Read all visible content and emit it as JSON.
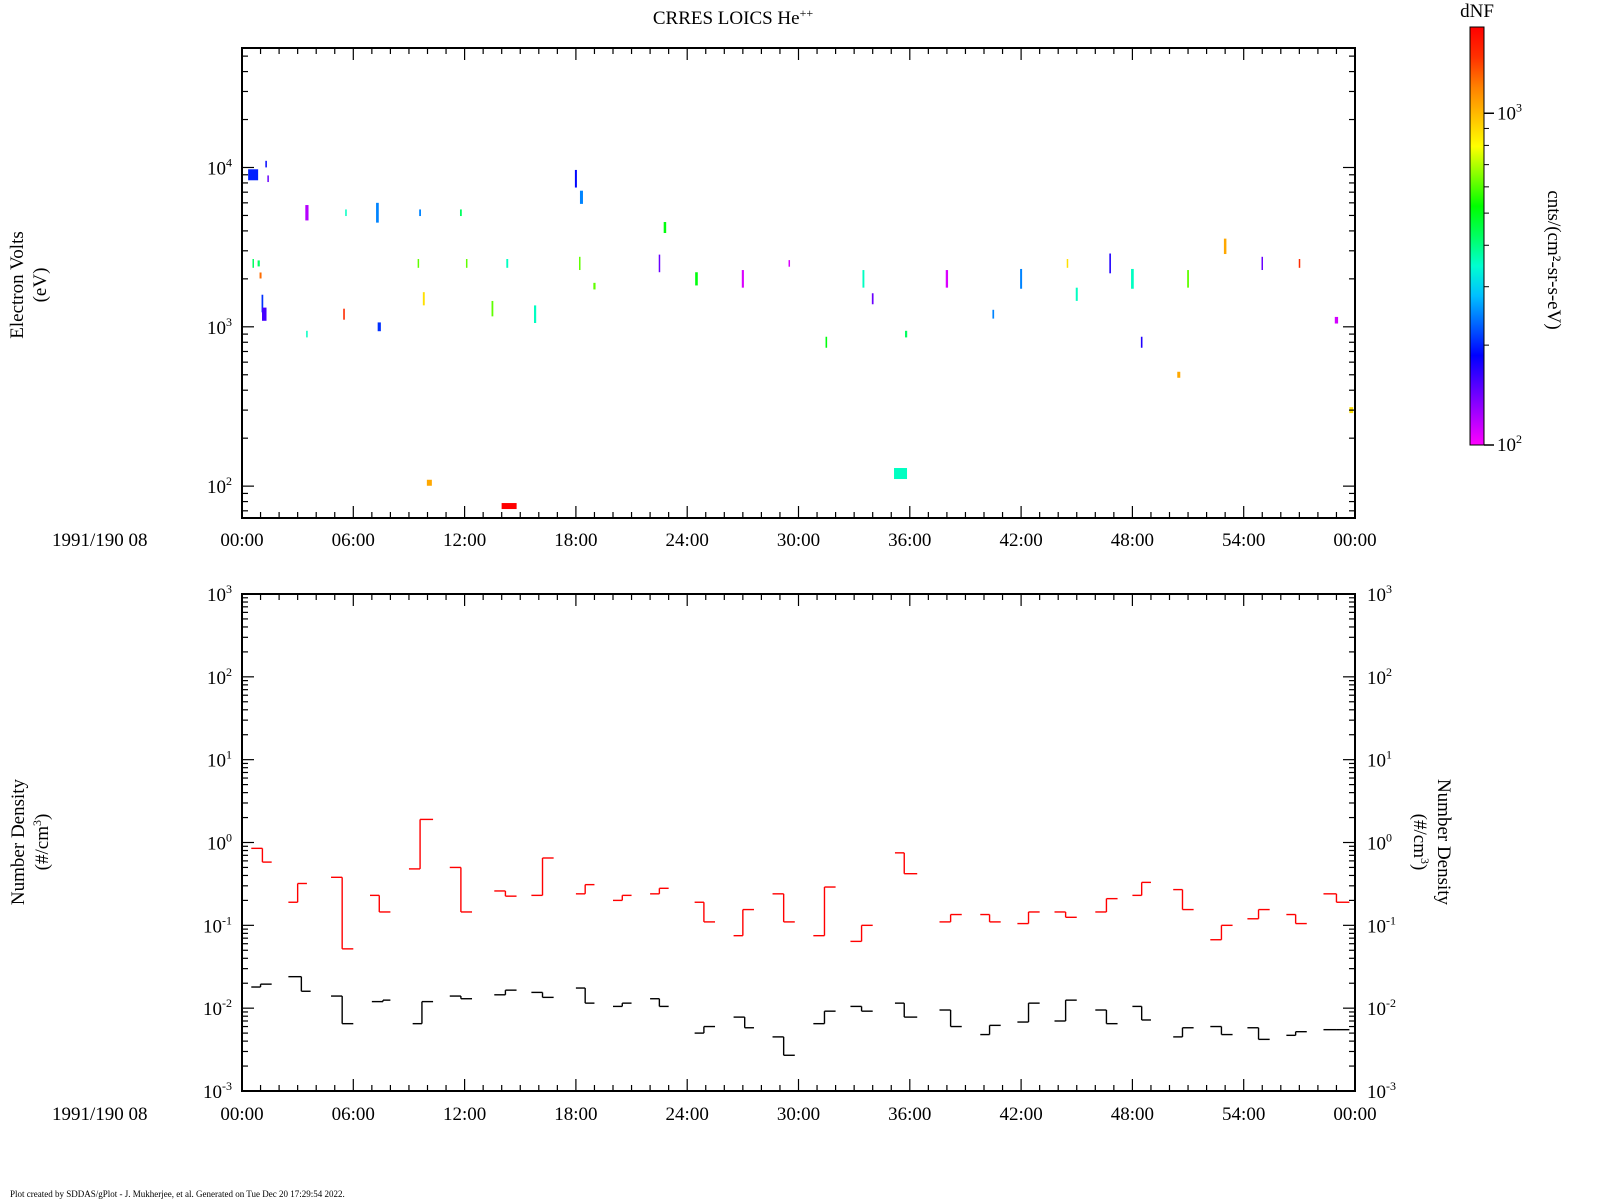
{
  "title": "CRRES LOICS He",
  "title_sup": "++",
  "footer": "Plot created by SDDAS/gPlot - J. Mukherjee, et al.  Generated on Tue Dec 20 17:29:54 2022.",
  "date_label": "1991/190 08",
  "x_ticks": [
    "00:00",
    "06:00",
    "12:00",
    "18:00",
    "24:00",
    "30:00",
    "36:00",
    "42:00",
    "48:00",
    "54:00",
    "00:00"
  ],
  "colorbar": {
    "title": "dNF",
    "label": "cnts/(cm²-sr-s-eV)",
    "tick_labels": [
      {
        "base": "10",
        "exp": "2"
      },
      {
        "base": "10",
        "exp": "3"
      }
    ],
    "log_range": [
      2.0,
      3.26
    ],
    "colors": [
      "#ff00ff",
      "#aa00ff",
      "#5500ff",
      "#0000ff",
      "#0060ff",
      "#00c0ff",
      "#00ffd0",
      "#00ff60",
      "#00ff00",
      "#80ff00",
      "#ffff00",
      "#ffc000",
      "#ff8000",
      "#ff3000",
      "#ff0000"
    ]
  },
  "chart_data": [
    {
      "type": "heatmap",
      "title": "CRRES LOICS He++",
      "ylabel": "Electron Volts",
      "ylabel2": "(eV)",
      "x_unit": "minutes since 00:00",
      "xlim": [
        0,
        60
      ],
      "ylim_log10": [
        1.8,
        4.75
      ],
      "y_tick_labels": [
        {
          "base": "10",
          "exp": "2"
        },
        {
          "base": "10",
          "exp": "3"
        },
        {
          "base": "10",
          "exp": "4"
        }
      ],
      "segments": [
        [
          0.6,
          9.0,
          0.5,
          10.0,
          3.8
        ],
        [
          0.6,
          2.5,
          0.4,
          1.3,
          8.0
        ],
        [
          0.9,
          2.5,
          0.1,
          2.2,
          8.0
        ],
        [
          1.0,
          2.1,
          0.2,
          2.0,
          14.0
        ],
        [
          1.1,
          1.4,
          0.8,
          1.7,
          4.0
        ],
        [
          1.2,
          1.2,
          0.6,
          4.5,
          2.5
        ],
        [
          1.3,
          10.5,
          0.3,
          1.5,
          3.5
        ],
        [
          1.4,
          8.5,
          0.3,
          1.2,
          2.0
        ],
        [
          3.5,
          5.2,
          0.7,
          3.2,
          1.0
        ],
        [
          3.5,
          0.9,
          0.3,
          1.5,
          7.0
        ],
        [
          5.5,
          1.2,
          0.5,
          1.6,
          15.0
        ],
        [
          5.6,
          5.2,
          0.3,
          1.3,
          7.0
        ],
        [
          7.3,
          5.2,
          0.9,
          2.7,
          5.0
        ],
        [
          7.4,
          1.0,
          0.4,
          3.2,
          4.0
        ],
        [
          9.6,
          5.2,
          0.3,
          1.8,
          5.0
        ],
        [
          9.5,
          2.5,
          0.4,
          1.2,
          10.0
        ],
        [
          9.8,
          1.5,
          0.6,
          1.9,
          12.0
        ],
        [
          10.1,
          0.105,
          0.1,
          5.0,
          13.0
        ],
        [
          11.8,
          5.2,
          0.3,
          1.8,
          8.0
        ],
        [
          12.1,
          2.5,
          0.4,
          1.0,
          10.0
        ],
        [
          13.5,
          1.3,
          0.7,
          1.8,
          10.0
        ],
        [
          14.3,
          2.5,
          0.4,
          1.9,
          7.0
        ],
        [
          14.4,
          0.075,
          0.1,
          15.0,
          16.0
        ],
        [
          15.8,
          1.2,
          0.8,
          2.2,
          7.0
        ],
        [
          18.0,
          8.5,
          0.8,
          2.0,
          3.5
        ],
        [
          18.3,
          6.5,
          0.6,
          3.0,
          5.0
        ],
        [
          18.2,
          2.5,
          0.6,
          1.2,
          10.0
        ],
        [
          19.0,
          1.8,
          0.3,
          2.2,
          10.0
        ],
        [
          22.8,
          4.2,
          0.5,
          2.5,
          9.0
        ],
        [
          22.5,
          2.5,
          0.8,
          1.3,
          2.0
        ],
        [
          24.5,
          2.0,
          0.6,
          2.6,
          9.0
        ],
        [
          27.0,
          2.0,
          0.8,
          2.1,
          0.5
        ],
        [
          29.5,
          2.5,
          0.3,
          1.4,
          0.5
        ],
        [
          31.5,
          0.8,
          0.5,
          1.6,
          9.0
        ],
        [
          33.5,
          2.0,
          0.8,
          1.9,
          7.0
        ],
        [
          34.0,
          1.5,
          0.5,
          1.7,
          2.0
        ],
        [
          35.5,
          0.12,
          0.5,
          13.0,
          7.0
        ],
        [
          35.8,
          0.9,
          0.3,
          2.2,
          8.0
        ],
        [
          38.0,
          2.0,
          0.8,
          2.3,
          0.5
        ],
        [
          40.5,
          1.2,
          0.4,
          1.7,
          5.0
        ],
        [
          42.0,
          2.0,
          0.9,
          2.0,
          5.0
        ],
        [
          44.5,
          2.5,
          0.4,
          1.5,
          12.0
        ],
        [
          45.0,
          1.6,
          0.6,
          2.0,
          7.0
        ],
        [
          46.8,
          2.5,
          0.9,
          1.6,
          3.0
        ],
        [
          48.0,
          2.0,
          0.9,
          2.7,
          7.0
        ],
        [
          48.5,
          0.8,
          0.5,
          1.6,
          3.0
        ],
        [
          50.5,
          0.5,
          0.1,
          3.0,
          13.0
        ],
        [
          51.0,
          2.0,
          0.8,
          1.8,
          10.0
        ],
        [
          53.0,
          3.2,
          0.7,
          2.5,
          13.0
        ],
        [
          55.0,
          2.5,
          0.6,
          1.5,
          2.0
        ],
        [
          57.0,
          2.5,
          0.4,
          1.2,
          15.0
        ],
        [
          59.0,
          1.1,
          0.3,
          3.3,
          0.6
        ],
        [
          59.8,
          0.3,
          0.1,
          3.8,
          12.0
        ]
      ]
    },
    {
      "type": "line",
      "ylabel": "Number Density",
      "ylabel2": "(#/cm",
      "ylabel2_sup": "3",
      "ylabel2_end": ")",
      "x_unit": "minutes since 00:00",
      "xlim": [
        0,
        60
      ],
      "ylim_log10": [
        -3,
        3
      ],
      "y_tick_labels": [
        {
          "base": "10",
          "exp": "3"
        },
        {
          "base": "10",
          "exp": "2"
        },
        {
          "base": "10",
          "exp": "1"
        },
        {
          "base": "10",
          "exp": "0"
        },
        {
          "base": "10",
          "exp": "-1"
        },
        {
          "base": "10",
          "exp": "-2"
        },
        {
          "base": "10",
          "exp": "-3"
        }
      ],
      "series": [
        {
          "color": "#ff0000",
          "segments": [
            [
              0.5,
              1.1,
              0.85
            ],
            [
              1.1,
              1.6,
              0.58
            ],
            [
              2.5,
              3.0,
              0.19
            ],
            [
              3.0,
              3.5,
              0.32
            ],
            [
              4.8,
              5.4,
              0.38
            ],
            [
              5.4,
              6.0,
              0.052
            ],
            [
              6.9,
              7.4,
              0.23
            ],
            [
              7.4,
              8.0,
              0.145
            ],
            [
              9.0,
              9.6,
              0.48
            ],
            [
              9.6,
              10.3,
              1.9
            ],
            [
              11.2,
              11.8,
              0.5
            ],
            [
              11.8,
              12.4,
              0.145
            ],
            [
              13.6,
              14.2,
              0.26
            ],
            [
              14.2,
              14.8,
              0.225
            ],
            [
              15.6,
              16.2,
              0.23
            ],
            [
              16.2,
              16.8,
              0.65
            ],
            [
              18.0,
              18.5,
              0.24
            ],
            [
              18.5,
              19.0,
              0.31
            ],
            [
              20.0,
              20.5,
              0.2
            ],
            [
              20.5,
              21.0,
              0.23
            ],
            [
              22.0,
              22.5,
              0.24
            ],
            [
              22.5,
              23.0,
              0.28
            ],
            [
              24.4,
              24.9,
              0.19
            ],
            [
              24.9,
              25.5,
              0.11
            ],
            [
              26.5,
              27.0,
              0.075
            ],
            [
              27.0,
              27.6,
              0.155
            ],
            [
              28.6,
              29.2,
              0.24
            ],
            [
              29.2,
              29.8,
              0.11
            ],
            [
              30.8,
              31.4,
              0.075
            ],
            [
              31.4,
              32.0,
              0.29
            ],
            [
              32.8,
              33.4,
              0.064
            ],
            [
              33.4,
              34.0,
              0.1
            ],
            [
              35.2,
              35.7,
              0.75
            ],
            [
              35.7,
              36.4,
              0.42
            ],
            [
              37.6,
              38.2,
              0.11
            ],
            [
              38.2,
              38.8,
              0.135
            ],
            [
              39.8,
              40.3,
              0.135
            ],
            [
              40.3,
              40.9,
              0.11
            ],
            [
              41.8,
              42.4,
              0.105
            ],
            [
              42.4,
              43.0,
              0.145
            ],
            [
              43.8,
              44.4,
              0.145
            ],
            [
              44.4,
              45.0,
              0.125
            ],
            [
              46.0,
              46.6,
              0.145
            ],
            [
              46.6,
              47.2,
              0.21
            ],
            [
              48.0,
              48.5,
              0.23
            ],
            [
              48.5,
              49.0,
              0.33
            ],
            [
              50.2,
              50.7,
              0.27
            ],
            [
              50.7,
              51.3,
              0.155
            ],
            [
              52.2,
              52.8,
              0.067
            ],
            [
              52.8,
              53.4,
              0.1
            ],
            [
              54.2,
              54.8,
              0.12
            ],
            [
              54.8,
              55.4,
              0.155
            ],
            [
              56.3,
              56.8,
              0.135
            ],
            [
              56.8,
              57.4,
              0.105
            ],
            [
              58.3,
              59.0,
              0.24
            ],
            [
              59.0,
              59.7,
              0.19
            ]
          ]
        },
        {
          "color": "#000000",
          "segments": [
            [
              0.5,
              1.0,
              0.018
            ],
            [
              1.0,
              1.6,
              0.0195
            ],
            [
              2.5,
              3.2,
              0.024
            ],
            [
              3.2,
              3.7,
              0.016
            ],
            [
              4.8,
              5.4,
              0.014
            ],
            [
              5.4,
              6.0,
              0.0065
            ],
            [
              7.0,
              7.6,
              0.012
            ],
            [
              7.6,
              8.0,
              0.0125
            ],
            [
              9.2,
              9.7,
              0.0065
            ],
            [
              9.7,
              10.3,
              0.012
            ],
            [
              11.2,
              11.8,
              0.014
            ],
            [
              11.8,
              12.4,
              0.013
            ],
            [
              13.6,
              14.2,
              0.0145
            ],
            [
              14.2,
              14.8,
              0.0165
            ],
            [
              15.6,
              16.2,
              0.0155
            ],
            [
              16.2,
              16.8,
              0.0135
            ],
            [
              18.0,
              18.5,
              0.0175
            ],
            [
              18.5,
              19.0,
              0.0115
            ],
            [
              20.0,
              20.5,
              0.0105
            ],
            [
              20.5,
              21.0,
              0.0115
            ],
            [
              22.0,
              22.5,
              0.013
            ],
            [
              22.5,
              23.0,
              0.0105
            ],
            [
              24.4,
              24.9,
              0.005
            ],
            [
              24.9,
              25.5,
              0.006
            ],
            [
              26.5,
              27.1,
              0.0078
            ],
            [
              27.1,
              27.6,
              0.0058
            ],
            [
              28.6,
              29.2,
              0.0045
            ],
            [
              29.2,
              29.8,
              0.0027
            ],
            [
              30.8,
              31.4,
              0.0065
            ],
            [
              31.4,
              32.0,
              0.0092
            ],
            [
              32.8,
              33.4,
              0.0105
            ],
            [
              33.4,
              34.0,
              0.0092
            ],
            [
              35.2,
              35.7,
              0.0115
            ],
            [
              35.7,
              36.4,
              0.0078
            ],
            [
              37.6,
              38.2,
              0.0095
            ],
            [
              38.2,
              38.8,
              0.006
            ],
            [
              39.8,
              40.3,
              0.0048
            ],
            [
              40.3,
              40.9,
              0.0062
            ],
            [
              41.8,
              42.4,
              0.0068
            ],
            [
              42.4,
              43.0,
              0.0115
            ],
            [
              43.8,
              44.4,
              0.007
            ],
            [
              44.4,
              45.0,
              0.0125
            ],
            [
              46.0,
              46.6,
              0.0095
            ],
            [
              46.6,
              47.2,
              0.0065
            ],
            [
              48.0,
              48.5,
              0.0105
            ],
            [
              48.5,
              49.0,
              0.0072
            ],
            [
              50.2,
              50.7,
              0.0045
            ],
            [
              50.7,
              51.3,
              0.0058
            ],
            [
              52.2,
              52.8,
              0.006
            ],
            [
              52.8,
              53.4,
              0.0048
            ],
            [
              54.2,
              54.8,
              0.0058
            ],
            [
              54.8,
              55.4,
              0.0042
            ],
            [
              56.3,
              56.8,
              0.0047
            ],
            [
              56.8,
              57.4,
              0.0052
            ],
            [
              58.3,
              59.0,
              0.0055
            ],
            [
              59.0,
              59.7,
              0.0055
            ]
          ]
        }
      ]
    }
  ]
}
